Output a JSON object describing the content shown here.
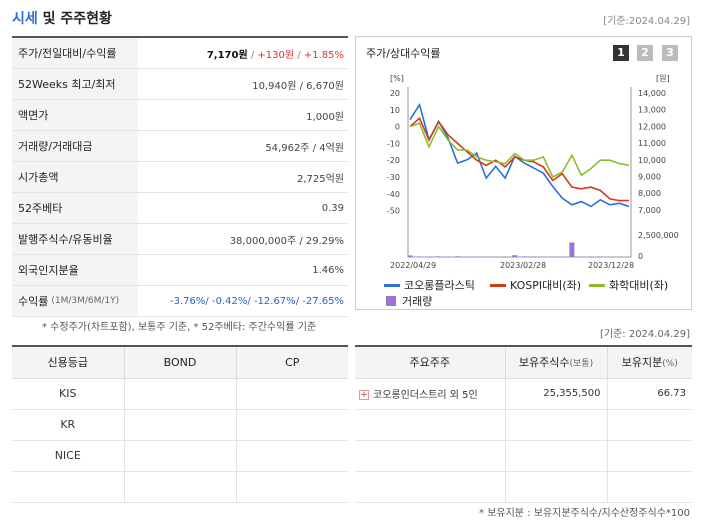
{
  "header": {
    "title_part1": "시세",
    "title_part2": " 및 주주현황",
    "date": "[기준:2024.04.29]"
  },
  "info": {
    "price_label": "주가/전일대비/수익률",
    "price": "7,170원",
    "change": "+130원",
    "change_pct": "+1.85%",
    "w52_label": "52Weeks 최고/최저",
    "w52_value": "10,940원 / 6,670원",
    "face_label": "액면가",
    "face_value": "1,000원",
    "volume_label": "거래량/거래대금",
    "volume_value": "54,962주 / 4억원",
    "mcap_label": "시가총액",
    "mcap_value": "2,725억원",
    "beta_label": "52주베타",
    "beta_value": "0.39",
    "shares_label": "발행주식수/유동비율",
    "shares_value": "38,000,000주 / 29.29%",
    "foreign_label": "외국인지분율",
    "foreign_value": "1.46%",
    "return_label": "수익률",
    "return_sub": "(1M/3M/6M/1Y)",
    "return_1m": "-3.76%",
    "return_3m": "-0.42%",
    "return_6m": "-12.67%",
    "return_1y": "-27.65%",
    "slash": "/"
  },
  "note1": "* 수정주가(차트포함), 보통주 기준, * 52주베타: 주간수익률 기준",
  "chart_panel": {
    "title": "주가/상대수익률",
    "period_buttons": [
      "1",
      "2",
      "3"
    ],
    "legend": {
      "stock": "코오롱플라스틱",
      "kospi": "KOSPI대비(좌)",
      "chem": "화학대비(좌)",
      "volume": "거래량"
    }
  },
  "chart_data": {
    "type": "line",
    "left_axis_unit": "[%]",
    "right_axis_unit": "[원]",
    "left_ticks": [
      20,
      10,
      0,
      -10,
      -20,
      -30,
      -40,
      -50
    ],
    "right_ticks": [
      "14,000",
      "13,000",
      "12,000",
      "11,000",
      "10,000",
      "9,000",
      "8,000",
      "7,000"
    ],
    "volume_ticks": [
      "2,500,000",
      "0"
    ],
    "x_labels": [
      "2022/04/29",
      "2023/02/28",
      "2023/12/28"
    ],
    "ylim_left": [
      -52,
      20
    ],
    "ylim_right": [
      6750,
      14000
    ],
    "volume_max": 2500000,
    "series": [
      {
        "name": "코오롱플라스틱",
        "axis": "right",
        "color": "#2d6fd8",
        "values": [
          12400,
          13300,
          11200,
          12300,
          11300,
          9800,
          10000,
          10400,
          8900,
          9600,
          8900,
          10200,
          9800,
          9500,
          9200,
          8400,
          7700,
          7300,
          7500,
          7200,
          7600,
          7300,
          7400,
          7200
        ]
      },
      {
        "name": "KOSPI대비(좌)",
        "axis": "left",
        "color": "#d13a1d",
        "values": [
          0,
          5,
          -8,
          3,
          -5,
          -10,
          -15,
          -20,
          -23,
          -20,
          -24,
          -18,
          -20,
          -21,
          -24,
          -32,
          -28,
          -36,
          -37,
          -36,
          -38,
          -43,
          -44,
          -44
        ]
      },
      {
        "name": "화학대비(좌)",
        "axis": "left",
        "color": "#8cbe2c",
        "values": [
          0,
          2,
          -12,
          0,
          -8,
          -14,
          -14,
          -18,
          -20,
          -21,
          -22,
          -16,
          -20,
          -20,
          -18,
          -30,
          -27,
          -17,
          -29,
          -25,
          -20,
          -20,
          -22,
          -23
        ]
      }
    ],
    "volume": [
      180000,
      60000,
      60000,
      70000,
      50000,
      80000,
      40000,
      60000,
      50000,
      30000,
      50000,
      200000,
      70000,
      60000,
      40000,
      50000,
      30000,
      1650000,
      50000,
      60000,
      40000,
      30000,
      30000,
      30000
    ]
  },
  "date2": "[기준: 2024.04.29]",
  "credit": {
    "headers": [
      "신용등급",
      "BOND",
      "CP"
    ],
    "rows": [
      [
        "KIS",
        "",
        ""
      ],
      [
        "KR",
        "",
        ""
      ],
      [
        "NICE",
        "",
        ""
      ],
      [
        "",
        "",
        ""
      ]
    ]
  },
  "holders": {
    "h_name": "주요주주",
    "h_shares": "보유주식수",
    "h_shares_sub": "(보통)",
    "h_pct": "보유지분",
    "h_pct_sub": "(%)",
    "row1_name": "코오롱인더스트리 외 5인",
    "row1_shares": "25,355,500",
    "row1_pct": "66.73"
  },
  "note2": "* 보유지분 : 보유지분주식수/지수산정주식수*100",
  "colors": {
    "accent": "#2a6fd6",
    "up": "#e23030",
    "down": "#2b5fd0",
    "volume": "#9b73d6"
  }
}
